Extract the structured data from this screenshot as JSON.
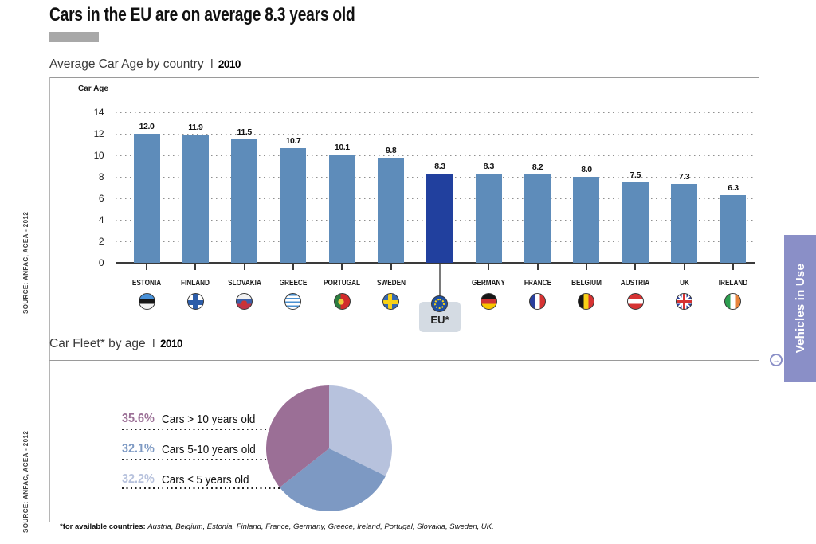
{
  "page": {
    "title": "Cars in the EU are on average 8.3 years old",
    "source": "SOURCE: ANFAC, ACEA - 2012",
    "footnote_prefix": "*for available countries:",
    "footnote_countries": "Austria, Belgium, Estonia, Finland, France, Germany, Greece, Ireland, Portugal, Slovakia, Sweden, UK.",
    "side_tab": {
      "label": "Vehicles in Use",
      "color": "#8a8fc7",
      "bullet_arrow": "→"
    }
  },
  "bar_section": {
    "title": "Average Car Age by country",
    "separator": "I",
    "year": "2010"
  },
  "pie_section": {
    "title": "Car Fleet* by age",
    "separator": "I",
    "year": "2010"
  },
  "chart_data": [
    {
      "type": "bar",
      "title": "Average Car Age by country | 2010",
      "ylabel": "Car Age",
      "ylim": [
        0,
        14
      ],
      "yticks": [
        0,
        2,
        4,
        6,
        8,
        10,
        12,
        14
      ],
      "grid": "dotted horizontal",
      "categories": [
        "ESTONIA",
        "FINLAND",
        "SLOVAKIA",
        "GREECE",
        "PORTUGAL",
        "SWEDEN",
        "EU*",
        "GERMANY",
        "FRANCE",
        "BELGIUM",
        "AUSTRIA",
        "UK",
        "IRELAND"
      ],
      "values": [
        12.0,
        11.9,
        11.5,
        10.7,
        10.1,
        9.8,
        8.3,
        8.3,
        8.2,
        8.0,
        7.5,
        7.3,
        6.3
      ],
      "flags": [
        "estonia",
        "finland",
        "slovakia",
        "greece",
        "portugal",
        "sweden",
        "eu",
        "germany",
        "france",
        "belgium",
        "austria",
        "uk",
        "ireland"
      ],
      "highlight_index": 6,
      "bar_color": "#5e8cba",
      "highlight_color": "#21409e"
    },
    {
      "type": "pie",
      "title": "Car Fleet* by age | 2010",
      "legend_position": "left",
      "slices": [
        {
          "label": "Cars > 10 years old",
          "pct": "35.6%",
          "value": 35.6,
          "color": "#9b6f96"
        },
        {
          "label": "Cars 5-10 years old",
          "pct": "32.1%",
          "value": 32.1,
          "color": "#7d99c3"
        },
        {
          "label": "Cars ≤ 5 years old",
          "pct": "32.2%",
          "value": 32.2,
          "color": "#b7c2dd"
        }
      ],
      "draw_order_clockwise_from_top": [
        2,
        1,
        0
      ]
    }
  ]
}
